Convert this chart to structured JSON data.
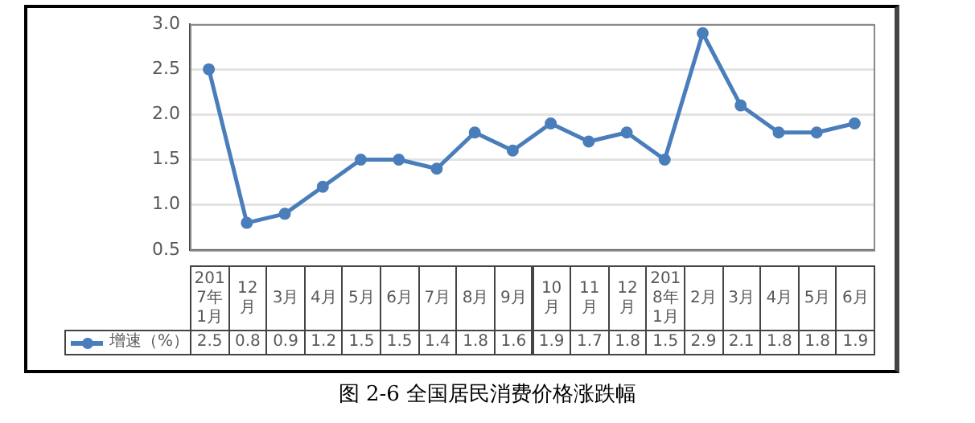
{
  "chart_data": {
    "type": "line",
    "title": "图 2-6 全国居民消费价格涨跌幅",
    "categories": [
      "2017年1月",
      "12月",
      "3月",
      "4月",
      "5月",
      "6月",
      "7月",
      "8月",
      "9月",
      "10月",
      "11月",
      "12月",
      "2018年1月",
      "2月",
      "3月",
      "4月",
      "5月",
      "6月"
    ],
    "series": [
      {
        "name": "增速（%）",
        "color": "#4a7ebb",
        "values": [
          2.5,
          0.8,
          0.9,
          1.2,
          1.5,
          1.5,
          1.4,
          1.8,
          1.6,
          1.9,
          1.7,
          1.8,
          1.5,
          2.9,
          2.1,
          1.8,
          1.8,
          1.9
        ]
      }
    ],
    "ylim": [
      0.5,
      3.0
    ],
    "yticks": [
      {
        "value": 0.5,
        "label": "0.5"
      },
      {
        "value": 1.0,
        "label": "1.0"
      },
      {
        "value": 1.5,
        "label": "1.5"
      },
      {
        "value": 2.0,
        "label": "2.0"
      },
      {
        "value": 2.5,
        "label": "2.5"
      },
      {
        "value": 3.0,
        "label": "3.0"
      }
    ],
    "grid": "y",
    "legend": "bottom",
    "marker": "circle",
    "line_style": "solid",
    "data_labels": true
  }
}
